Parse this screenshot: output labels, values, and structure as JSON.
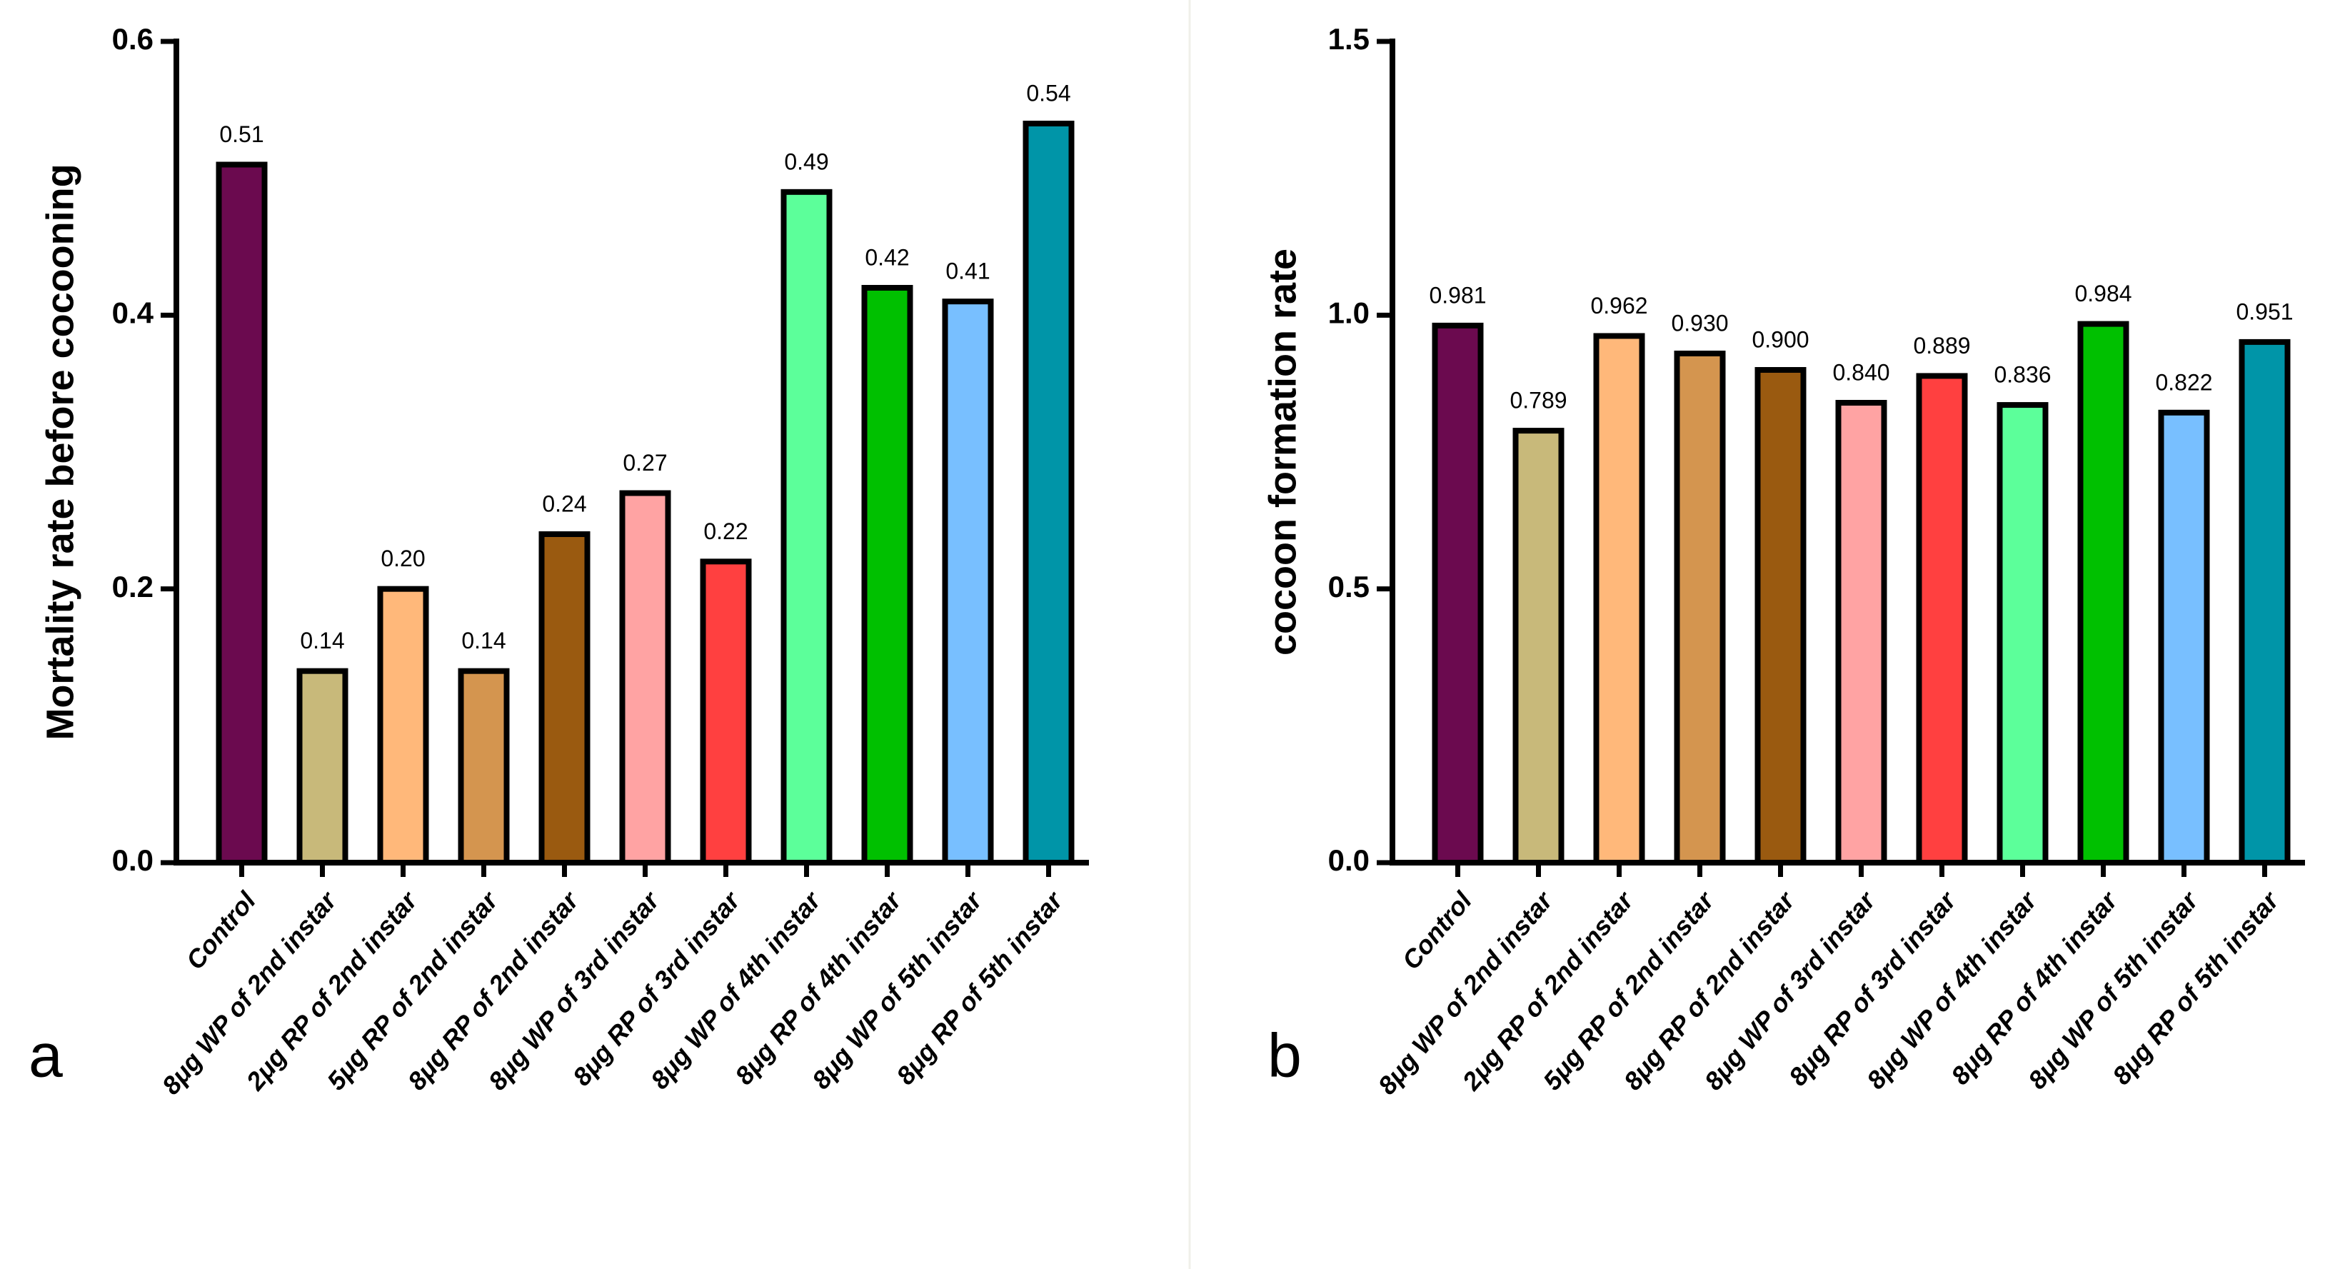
{
  "chart_data": [
    {
      "type": "bar",
      "panel_label": "a",
      "y_label": "Mortality rate before cocooning",
      "categories": [
        "Control",
        "8μg WP of 2nd instar",
        "2μg RP of  2nd instar",
        "5μg RP of 2nd instar",
        "8μg RP of 2nd instar",
        "8μg WP of 3rd instar",
        "8μg RP of 3rd instar",
        "8μg WP of 4th instar",
        "8μg RP of 4th instar",
        "8μg WP of 5th instar",
        "8μg RP of 5th instar"
      ],
      "values": [
        0.51,
        0.14,
        0.2,
        0.14,
        0.24,
        0.27,
        0.22,
        0.49,
        0.42,
        0.41,
        0.54
      ],
      "value_labels": [
        "0.51",
        "0.14",
        "0.20",
        "0.14",
        "0.24",
        "0.27",
        "0.22",
        "0.49",
        "0.42",
        "0.41",
        "0.54"
      ],
      "colors": [
        "#6b0a4f",
        "#c8b97a",
        "#ffb87a",
        "#d4954f",
        "#9a5a10",
        "#ffa3a3",
        "#ff4040",
        "#5cff9a",
        "#00c000",
        "#78bfff",
        "#0095a8"
      ],
      "ylim": [
        0,
        0.6
      ],
      "yticks": [
        {
          "value": 0,
          "label": "0.0"
        },
        {
          "value": 0.2,
          "label": "0.2"
        },
        {
          "value": 0.4,
          "label": "0.4"
        },
        {
          "value": 0.6,
          "label": "0.6"
        }
      ]
    },
    {
      "type": "bar",
      "panel_label": "b",
      "y_label": "cocoon formation rate",
      "categories": [
        "Control",
        "8μg WP of 2nd instar",
        "2μg RP of  2nd instar",
        "5μg RP of 2nd instar",
        "8μg RP of 2nd instar",
        "8μg WP of 3rd instar",
        "8μg RP of 3rd instar",
        "8μg WP of 4th instar",
        "8μg RP of 4th instar",
        "8μg WP of 5th instar",
        "8μg RP of 5th instar"
      ],
      "values": [
        0.981,
        0.789,
        0.962,
        0.93,
        0.9,
        0.84,
        0.889,
        0.836,
        0.984,
        0.822,
        0.951
      ],
      "value_labels": [
        "0.981",
        "0.789",
        "0.962",
        "0.930",
        "0.900",
        "0.840",
        "0.889",
        "0.836",
        "0.984",
        "0.822",
        "0.951"
      ],
      "colors": [
        "#6b0a4f",
        "#c8b97a",
        "#ffb87a",
        "#d4954f",
        "#9a5a10",
        "#ffa3a3",
        "#ff4040",
        "#5cff9a",
        "#00c000",
        "#78bfff",
        "#0095a8"
      ],
      "ylim": [
        0,
        1.5
      ],
      "yticks": [
        {
          "value": 0,
          "label": "0.0"
        },
        {
          "value": 0.5,
          "label": "0.5"
        },
        {
          "value": 1,
          "label": "1.0"
        },
        {
          "value": 1.5,
          "label": "1.5"
        }
      ]
    }
  ]
}
